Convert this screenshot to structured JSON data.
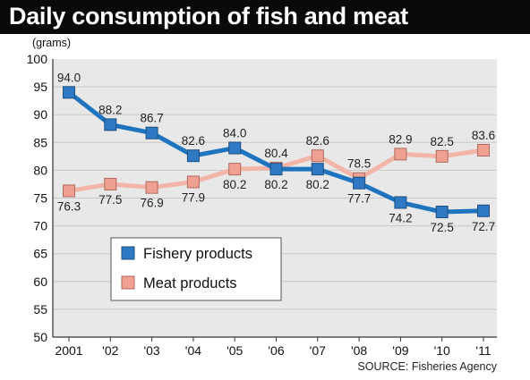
{
  "title": "Daily consumption of fish and meat",
  "source": "SOURCE: Fisheries Agency",
  "colors": {
    "fishery_line": "#1f74bf",
    "fishery_marker": "#2e78c4",
    "meat_line": "#f3b5a8",
    "meat_marker": "#f0a090",
    "title_bar": "#0a0a0a",
    "plot_background": "#e8e8e8",
    "grid": "#c8c8c8"
  },
  "chart_data": {
    "type": "line",
    "title": "Daily consumption of fish and meat",
    "ylabel": "(grams)",
    "xlabel": "",
    "categories": [
      "2001",
      "'02",
      "'03",
      "'04",
      "'05",
      "'06",
      "'07",
      "'08",
      "'09",
      "'10",
      "'11"
    ],
    "ylim": [
      50,
      100
    ],
    "yticks": [
      50,
      55,
      60,
      65,
      70,
      75,
      80,
      85,
      90,
      95,
      100
    ],
    "grid": "horizontal",
    "legend": "bottom-left",
    "series": [
      {
        "name": "Fishery products",
        "values": [
          94.0,
          88.2,
          86.7,
          82.6,
          84.0,
          80.2,
          80.2,
          77.7,
          74.2,
          72.5,
          72.7
        ],
        "labels": [
          "94.0",
          "88.2",
          "86.7",
          "82.6",
          "84.0",
          "80.2",
          "80.2",
          "77.7",
          "74.2",
          "72.5",
          "72.7"
        ]
      },
      {
        "name": "Meat products",
        "values": [
          76.3,
          77.5,
          76.9,
          77.9,
          80.2,
          80.4,
          82.6,
          78.5,
          82.9,
          82.5,
          83.6
        ],
        "labels": [
          "76.3",
          "77.5",
          "76.9",
          "77.9",
          "80.2",
          "80.4",
          "82.6",
          "78.5",
          "82.9",
          "82.5",
          "83.6"
        ]
      }
    ]
  }
}
